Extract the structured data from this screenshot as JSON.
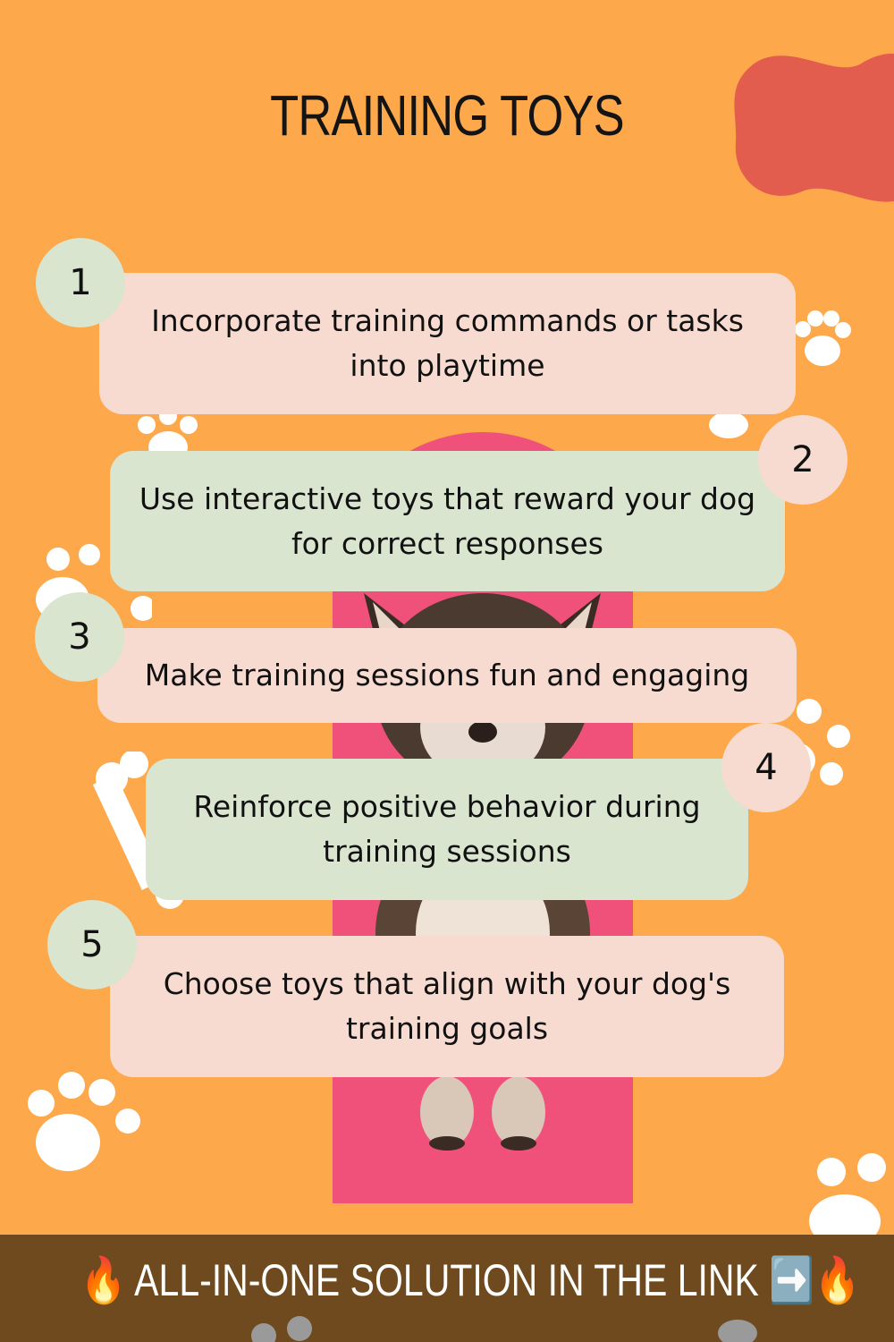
{
  "title": "TRAINING TOYS",
  "steps": [
    {
      "number": "1",
      "text": "Incorporate training commands or tasks into playtime"
    },
    {
      "number": "2",
      "text": "Use interactive toys that reward your dog for correct responses"
    },
    {
      "number": "3",
      "text": "Make training sessions fun and engaging"
    },
    {
      "number": "4",
      "text": "Reinforce positive behavior during training sessions"
    },
    {
      "number": "5",
      "text": "Choose toys that align with your dog's training goals"
    }
  ],
  "footer": {
    "text": "🔥 ALL-IN-ONE SOLUTION IN THE LINK ➡️🔥"
  },
  "colors": {
    "background": "#fda84a",
    "card_pink": "#f7dbd0",
    "card_green": "#d9e5cf",
    "photo_backdrop": "#f0517a",
    "blob": "#e25d4e",
    "footer_bar": "#6f4a1f"
  },
  "icons": [
    "paw-print-icon",
    "bone-icon",
    "dog-photo"
  ]
}
